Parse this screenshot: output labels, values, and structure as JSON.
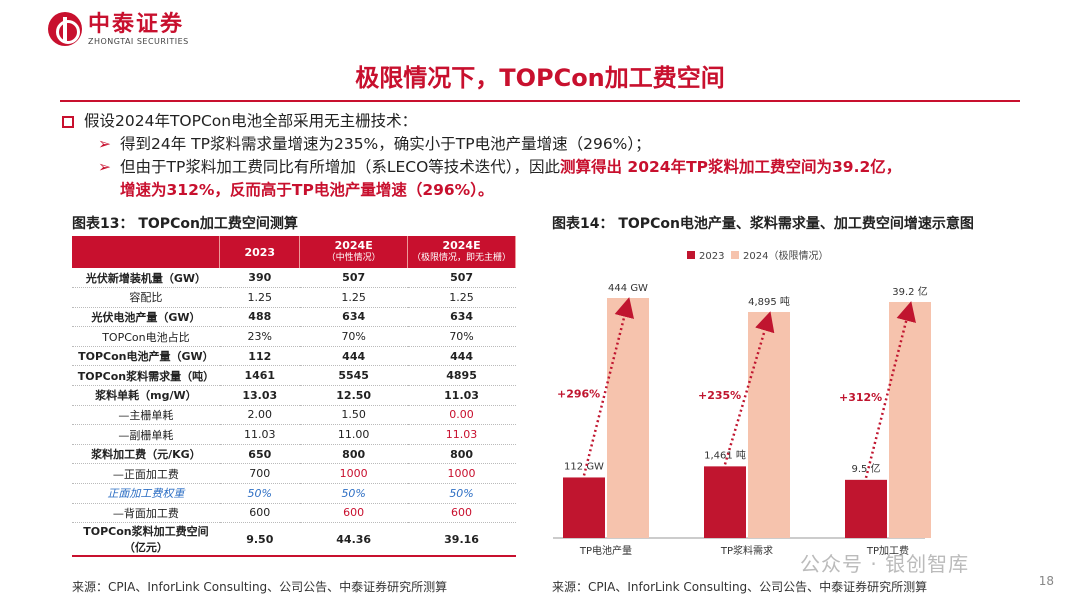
{
  "logo": {
    "cn": "中泰证券",
    "en": "ZHONGTAI SECURITIES"
  },
  "title": "极限情况下，TOPCon加工费空间",
  "bullets": {
    "main": "假设2024年TOPCon电池全部采用无主栅技术：",
    "sub1": "得到24年 TP浆料需求量增速为235%，确实小于TP电池产量增速（296%）；",
    "sub2_a": "但由于TP浆料加工费同比有所增加（系LECO等技术迭代），因此",
    "sub2_b": "测算得出 2024年TP浆料加工费空间为39.2亿，",
    "sub2_c": "增速为312%，反而高于TP电池产量增速（296%）。"
  },
  "table": {
    "caption": "图表13： TOPCon加工费空间测算",
    "headers": [
      {
        "main": "",
        "sub": ""
      },
      {
        "main": "2023",
        "sub": ""
      },
      {
        "main": "2024E",
        "sub": "（中性情况）"
      },
      {
        "main": "2024E",
        "sub": "（极限情况，即无主栅）"
      }
    ],
    "rows": [
      {
        "label": "光伏新增装机量（GW）",
        "v": [
          "390",
          "507",
          "507"
        ]
      },
      {
        "label": "容配比",
        "v": [
          "1.25",
          "1.25",
          "1.25"
        ]
      },
      {
        "label": "光伏电池产量（GW）",
        "v": [
          "488",
          "634",
          "634"
        ]
      },
      {
        "label": "TOPCon电池占比",
        "v": [
          "23%",
          "70%",
          "70%"
        ]
      },
      {
        "label": "TOPCon电池产量（GW）",
        "v": [
          "112",
          "444",
          "444"
        ]
      },
      {
        "label": "TOPCon浆料需求量（吨）",
        "v": [
          "1461",
          "5545",
          "4895"
        ]
      },
      {
        "label": "浆料单耗（mg/W）",
        "v": [
          "13.03",
          "12.50",
          "11.03"
        ]
      },
      {
        "label": "—主栅单耗",
        "v": [
          "2.00",
          "1.50",
          "0.00"
        ]
      },
      {
        "label": "—副栅单耗",
        "v": [
          "11.03",
          "11.00",
          "11.03"
        ]
      },
      {
        "label": "浆料加工费（元/KG）",
        "v": [
          "650",
          "800",
          "800"
        ]
      },
      {
        "label": "—正面加工费",
        "v": [
          "700",
          "1000",
          "1000"
        ]
      },
      {
        "label": "正面加工费权重",
        "v": [
          "50%",
          "50%",
          "50%"
        ]
      },
      {
        "label": "—背面加工费",
        "v": [
          "600",
          "600",
          "600"
        ]
      },
      {
        "label": "TOPCon浆料加工费空间\n（亿元）",
        "v": [
          "9.50",
          "44.36",
          "39.16"
        ]
      }
    ],
    "source": "来源：CPIA、InforLink Consulting、公司公告、中泰证券研究所测算"
  },
  "chart_data": {
    "type": "bar",
    "title": "图表14： TOPCon电池产量、浆料需求量、加工费空间增速示意图",
    "categories": [
      "TP电池产量",
      "TP浆料需求",
      "TP加工费"
    ],
    "series": [
      {
        "name": "2023",
        "values": [
          112,
          1461,
          9.5
        ],
        "labels": [
          "112 GW",
          "1,461 吨",
          "9.5 亿"
        ],
        "color": "#c0152f"
      },
      {
        "name": "2024（极限情况）",
        "values": [
          444,
          4895,
          39.2
        ],
        "labels": [
          "444 GW",
          "4,895 吨",
          "39.2 亿"
        ],
        "color": "#f6c3ad"
      }
    ],
    "growth": [
      "+296%",
      "+235%",
      "+312%"
    ],
    "legend": "top-left"
  },
  "source2": "来源：CPIA、InforLink Consulting、公司公告、中泰证券研究所测算",
  "page_number": "18",
  "watermark": "公众号 · 银创智库"
}
